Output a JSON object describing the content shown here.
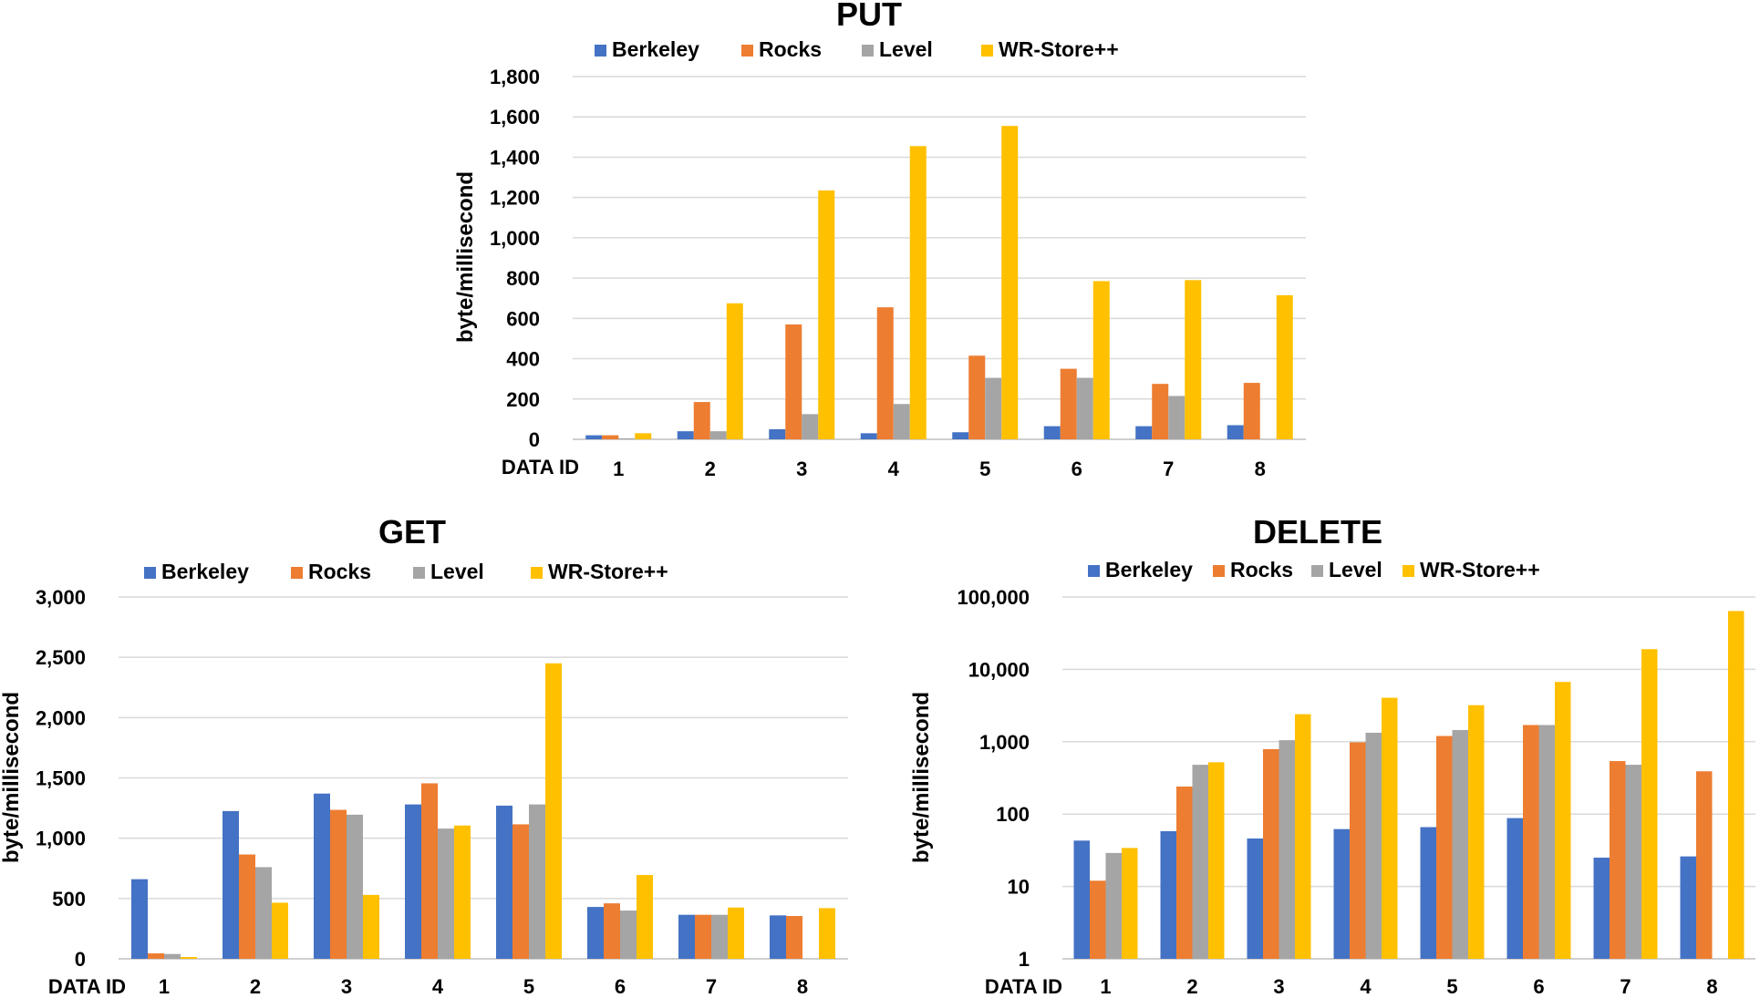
{
  "chart_data": [
    {
      "type": "bar",
      "title": "PUT",
      "xlabel": "DATA ID",
      "ylabel": "byte/millisecond",
      "categories": [
        "1",
        "2",
        "3",
        "4",
        "5",
        "6",
        "7",
        "8"
      ],
      "ylim": [
        0,
        1800
      ],
      "yticks": [
        0,
        200,
        400,
        600,
        800,
        1000,
        1200,
        1400,
        1600,
        1800
      ],
      "ytick_labels": [
        "0",
        "200",
        "400",
        "600",
        "800",
        "1,000",
        "1,200",
        "1,400",
        "1,600",
        "1,800"
      ],
      "scale": "linear",
      "grid": true,
      "legend_position": "top",
      "series": [
        {
          "name": "Berkeley",
          "color": "#4472C4",
          "values": [
            20,
            40,
            50,
            30,
            35,
            65,
            65,
            70
          ]
        },
        {
          "name": "Rocks",
          "color": "#ED7D31",
          "values": [
            20,
            185,
            570,
            655,
            415,
            350,
            275,
            280
          ]
        },
        {
          "name": "Level",
          "color": "#A5A5A5",
          "values": [
            5,
            40,
            125,
            175,
            305,
            305,
            215,
            0
          ]
        },
        {
          "name": "WR-Store++",
          "color": "#FFC000",
          "values": [
            30,
            675,
            1235,
            1455,
            1555,
            785,
            790,
            715
          ]
        }
      ]
    },
    {
      "type": "bar",
      "title": "GET",
      "xlabel": "DATA ID",
      "ylabel": "byte/millisecond",
      "categories": [
        "1",
        "2",
        "3",
        "4",
        "5",
        "6",
        "7",
        "8"
      ],
      "ylim": [
        0,
        3000
      ],
      "yticks": [
        0,
        500,
        1000,
        1500,
        2000,
        2500,
        3000
      ],
      "ytick_labels": [
        "0",
        "500",
        "1,000",
        "1,500",
        "2,000",
        "2,500",
        "3,000"
      ],
      "scale": "linear",
      "grid": true,
      "legend_position": "top",
      "series": [
        {
          "name": "Berkeley",
          "color": "#4472C4",
          "values": [
            660,
            1225,
            1370,
            1280,
            1270,
            430,
            365,
            360
          ]
        },
        {
          "name": "Rocks",
          "color": "#ED7D31",
          "values": [
            45,
            865,
            1235,
            1455,
            1115,
            460,
            365,
            355
          ]
        },
        {
          "name": "Level",
          "color": "#A5A5A5",
          "values": [
            40,
            760,
            1195,
            1080,
            1280,
            400,
            365,
            0
          ]
        },
        {
          "name": "WR-Store++",
          "color": "#FFC000",
          "values": [
            15,
            465,
            530,
            1105,
            2450,
            695,
            425,
            420
          ]
        }
      ]
    },
    {
      "type": "bar",
      "title": "DELETE",
      "xlabel": "DATA ID",
      "ylabel": "byte/millisecond",
      "categories": [
        "1",
        "2",
        "3",
        "4",
        "5",
        "6",
        "7",
        "8"
      ],
      "ylim": [
        1,
        100000
      ],
      "yticks": [
        1,
        10,
        100,
        1000,
        10000,
        100000
      ],
      "ytick_labels": [
        "1",
        "10",
        "100",
        "1,000",
        "10,000",
        "100,000"
      ],
      "scale": "log",
      "grid": true,
      "legend_position": "top",
      "series": [
        {
          "name": "Berkeley",
          "color": "#4472C4",
          "values": [
            43,
            58,
            46,
            62,
            66,
            88,
            25,
            26
          ]
        },
        {
          "name": "Rocks",
          "color": "#ED7D31",
          "values": [
            12,
            240,
            790,
            980,
            1200,
            1700,
            540,
            390
          ]
        },
        {
          "name": "Level",
          "color": "#A5A5A5",
          "values": [
            29,
            480,
            1050,
            1330,
            1450,
            1700,
            480,
            0
          ]
        },
        {
          "name": "WR-Store++",
          "color": "#FFC000",
          "values": [
            34,
            520,
            2400,
            4050,
            3200,
            6700,
            19000,
            64000
          ]
        }
      ]
    }
  ]
}
